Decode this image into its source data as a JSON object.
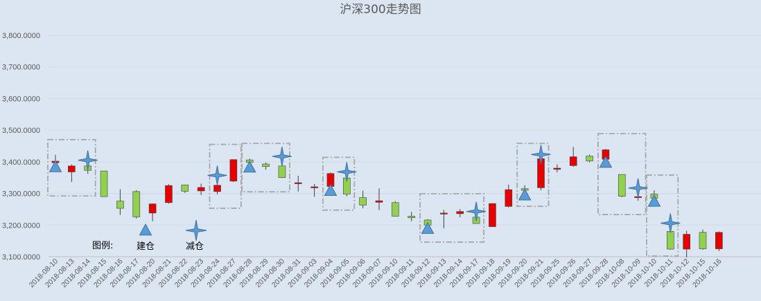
{
  "chart_data": {
    "type": "candlestick",
    "title": "沪深300走势图",
    "ylim": [
      3100,
      3800
    ],
    "y_ticks": [
      "3,100.0000",
      "3,200.0000",
      "3,300.0000",
      "3,400.0000",
      "3,500.0000",
      "3,600.0000",
      "3,700.0000",
      "3,800.0000"
    ],
    "y_tick_values": [
      3100,
      3200,
      3300,
      3400,
      3500,
      3600,
      3700,
      3800
    ],
    "grid": true,
    "colors": {
      "up": "#e60000",
      "down": "#92d050",
      "marker": "#5b9bd5",
      "box": "#a6a6a6"
    },
    "categories": [
      "2018-08-10",
      "2018-08-13",
      "2018-08-14",
      "2018-08-15",
      "2018-08-16",
      "2018-08-17",
      "2018-08-20",
      "2018-08-21",
      "2018-08-22",
      "2018-08-23",
      "2018-08-24",
      "2018-08-27",
      "2018-08-28",
      "2018-08-29",
      "2018-08-30",
      "2018-08-31",
      "2018-09-03",
      "2018-09-04",
      "2018-09-05",
      "2018-09-06",
      "2018-09-07",
      "2018-09-10",
      "2018-09-11",
      "2018-09-12",
      "2018-09-13",
      "2018-09-14",
      "2018-09-17",
      "2018-09-18",
      "2018-09-19",
      "2018-09-20",
      "2018-09-21",
      "2018-09-25",
      "2018-09-26",
      "2018-09-27",
      "2018-09-28",
      "2018-10-08",
      "2018-10-09",
      "2018-10-10",
      "2018-10-11",
      "2018-10-12",
      "2018-10-15",
      "2018-10-16"
    ],
    "ohlc": [
      [
        3397,
        3422,
        3392,
        3402
      ],
      [
        3368,
        3392,
        3336,
        3387
      ],
      [
        3387,
        3392,
        3362,
        3373
      ],
      [
        3371,
        3371,
        3289,
        3290
      ],
      [
        3276,
        3313,
        3232,
        3253
      ],
      [
        3306,
        3310,
        3221,
        3226
      ],
      [
        3238,
        3268,
        3212,
        3267
      ],
      [
        3271,
        3329,
        3268,
        3325
      ],
      [
        3327,
        3328,
        3302,
        3307
      ],
      [
        3308,
        3331,
        3295,
        3319
      ],
      [
        3306,
        3344,
        3297,
        3326
      ],
      [
        3339,
        3407,
        3336,
        3407
      ],
      [
        3406,
        3410,
        3391,
        3398
      ],
      [
        3393,
        3398,
        3375,
        3385
      ],
      [
        3387,
        3404,
        3349,
        3350
      ],
      [
        3334,
        3356,
        3306,
        3334
      ],
      [
        3320,
        3330,
        3290,
        3321
      ],
      [
        3322,
        3366,
        3317,
        3363
      ],
      [
        3349,
        3355,
        3291,
        3298
      ],
      [
        3287,
        3309,
        3253,
        3263
      ],
      [
        3272,
        3316,
        3247,
        3277
      ],
      [
        3271,
        3275,
        3227,
        3228
      ],
      [
        3228,
        3242,
        3212,
        3223
      ],
      [
        3216,
        3219,
        3197,
        3200
      ],
      [
        3236,
        3248,
        3190,
        3238
      ],
      [
        3236,
        3251,
        3225,
        3243
      ],
      [
        3225,
        3230,
        3204,
        3205
      ],
      [
        3195,
        3269,
        3195,
        3268
      ],
      [
        3259,
        3328,
        3256,
        3312
      ],
      [
        3315,
        3326,
        3303,
        3310
      ],
      [
        3318,
        3410,
        3310,
        3410
      ],
      [
        3376,
        3392,
        3367,
        3380
      ],
      [
        3388,
        3447,
        3384,
        3416
      ],
      [
        3418,
        3423,
        3398,
        3403
      ],
      [
        3408,
        3441,
        3406,
        3438
      ],
      [
        3360,
        3360,
        3288,
        3291
      ],
      [
        3287,
        3304,
        3277,
        3290
      ],
      [
        3298,
        3310,
        3283,
        3285
      ],
      [
        3180,
        3193,
        3122,
        3124
      ],
      [
        3124,
        3182,
        3098,
        3171
      ],
      [
        3177,
        3186,
        3122,
        3125
      ],
      [
        3125,
        3180,
        3118,
        3177
      ]
    ],
    "buy_markers": [
      0,
      12,
      17,
      23,
      29,
      34,
      37
    ],
    "sell_markers": [
      2,
      10,
      14,
      18,
      26,
      30,
      36,
      38
    ],
    "boxes": [
      [
        0,
        2
      ],
      [
        10,
        11
      ],
      [
        12,
        14
      ],
      [
        17,
        18
      ],
      [
        23,
        26
      ],
      [
        29,
        30
      ],
      [
        34,
        36
      ],
      [
        37,
        38
      ]
    ],
    "legend": {
      "label": "图例:",
      "buy": "建仓",
      "sell": "减仓"
    }
  }
}
